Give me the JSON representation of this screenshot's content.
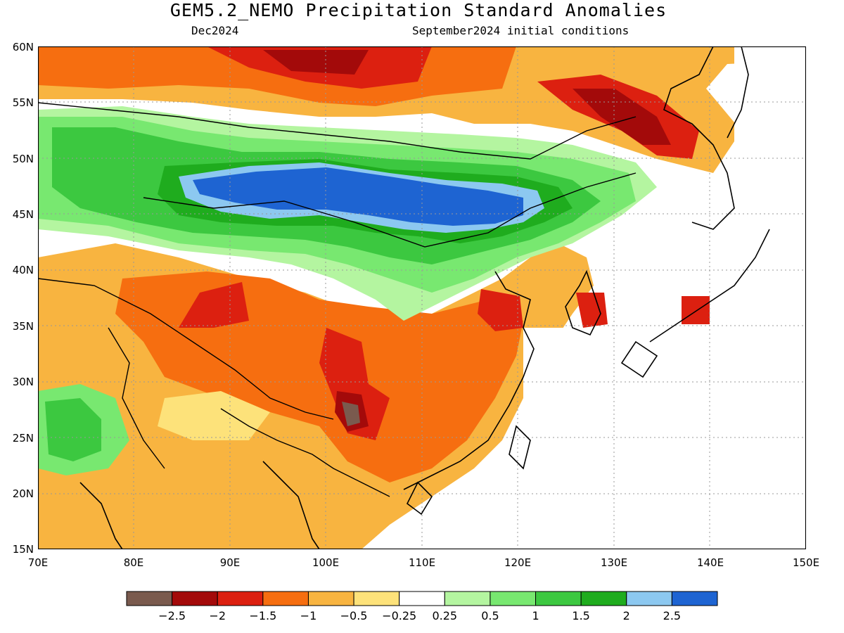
{
  "title": "GEM5.2_NEMO Precipitation Standard Anomalies",
  "subtitle_left": "Dec2024",
  "subtitle_right": "September2024 initial conditions",
  "lat_labels": [
    "60N",
    "55N",
    "50N",
    "45N",
    "40N",
    "35N",
    "30N",
    "25N",
    "20N",
    "15N"
  ],
  "lon_labels": [
    "70E",
    "80E",
    "90E",
    "100E",
    "110E",
    "120E",
    "130E",
    "140E",
    "150E"
  ],
  "colorbar": {
    "colors": [
      "#7a5a4e",
      "#a30a0a",
      "#dc2010",
      "#f66e10",
      "#f8b440",
      "#fde27a",
      "#ffffff",
      "#b4f5a0",
      "#78e870",
      "#3cc840",
      "#1fac1e",
      "#8cc8f0",
      "#1e64d2"
    ],
    "labels": [
      "−2.5",
      "−2",
      "−1.5",
      "−1",
      "−0.5",
      "−0.25",
      "0.25",
      "0.5",
      "1",
      "1.5",
      "2",
      "2.5"
    ]
  },
  "map_extent": {
    "lon": [
      70,
      150
    ],
    "lat": [
      15,
      60
    ]
  }
}
